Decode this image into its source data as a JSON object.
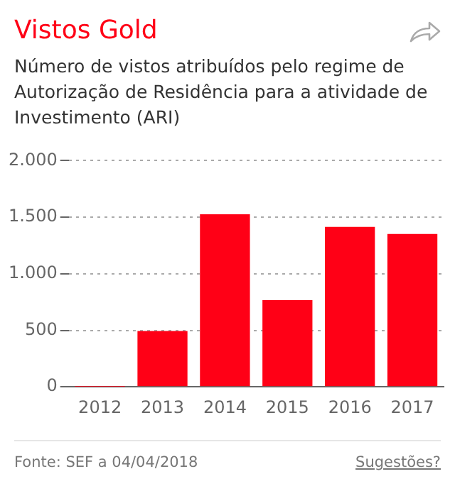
{
  "chart_data": {
    "type": "bar",
    "title": "Vistos Gold",
    "subtitle": "Número de vistos atribuídos pelo regime de Autorização de Residência para a atividade de Investimento (ARI)",
    "categories": [
      "2012",
      "2013",
      "2014",
      "2015",
      "2016",
      "2017"
    ],
    "values": [
      2,
      494,
      1526,
      766,
      1414,
      1351
    ],
    "color": "#ff0016",
    "ylim": [
      0,
      2000
    ],
    "yticks": [
      {
        "value": 0,
        "label": "0"
      },
      {
        "value": 500,
        "label": "500"
      },
      {
        "value": 1000,
        "label": "1.000"
      },
      {
        "value": 1500,
        "label": "1.500"
      },
      {
        "value": 2000,
        "label": "2.000"
      }
    ],
    "grid": "y",
    "legend": false,
    "annotations": [
      "Fonte: SEF a 04/04/2018",
      "Sugestões?"
    ]
  }
}
